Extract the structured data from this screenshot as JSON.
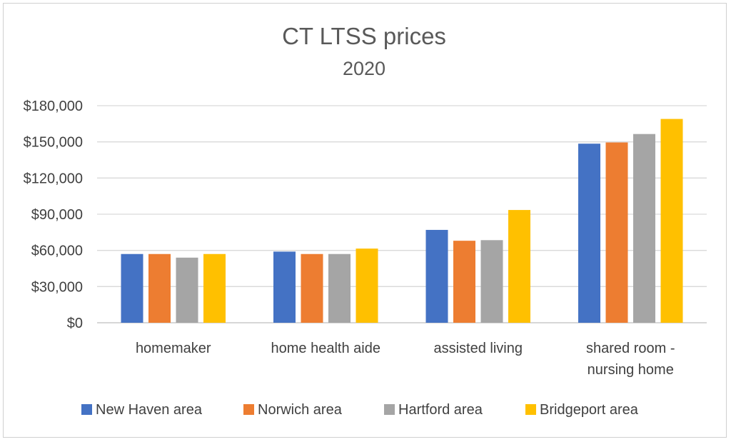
{
  "chart_data": {
    "type": "bar",
    "title": "CT LTSS prices",
    "subtitle": "2020",
    "categories": [
      [
        "homemaker"
      ],
      [
        "home health aide"
      ],
      [
        "assisted living"
      ],
      [
        "shared room -",
        "nursing home"
      ]
    ],
    "series": [
      {
        "name": "New Haven area",
        "color": "#4472C4",
        "values": [
          57000,
          59000,
          77000,
          148500
        ]
      },
      {
        "name": "Norwich area",
        "color": "#ED7D31",
        "values": [
          57000,
          57000,
          68000,
          149500
        ]
      },
      {
        "name": "Hartford area",
        "color": "#A5A5A5",
        "values": [
          54000,
          57000,
          68500,
          156500
        ]
      },
      {
        "name": "Bridgeport area",
        "color": "#FFC000",
        "values": [
          57000,
          61500,
          93500,
          169000
        ]
      }
    ],
    "ylim": [
      0,
      180000
    ],
    "yticks": [
      0,
      30000,
      60000,
      90000,
      120000,
      150000,
      180000
    ],
    "ytick_labels": [
      "$0",
      "$30,000",
      "$60,000",
      "$90,000",
      "$120,000",
      "$150,000",
      "$180,000"
    ],
    "grid": true,
    "legend_position": "bottom"
  }
}
